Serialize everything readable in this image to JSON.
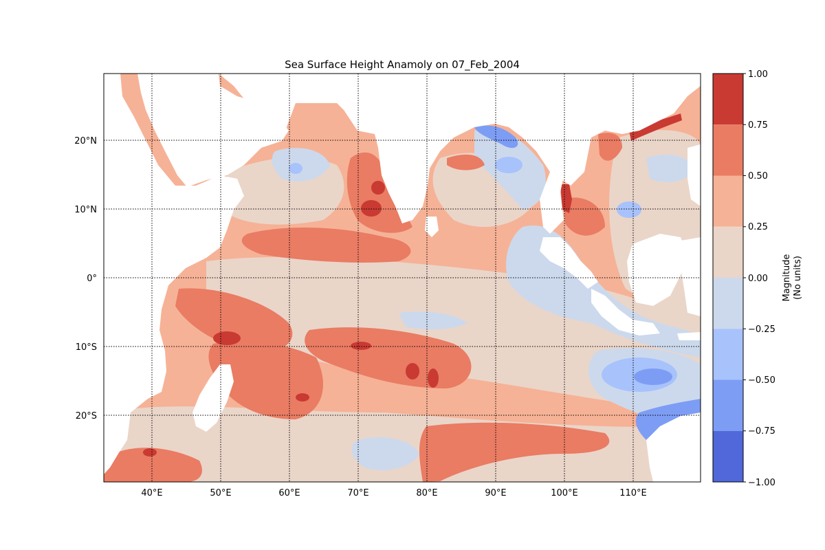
{
  "title": "Sea Surface Height Anamoly on 07_Feb_2004",
  "map": {
    "lon_range": [
      33,
      120
    ],
    "lat_range": [
      -30,
      30
    ],
    "grid": true,
    "grid_style": "dotted",
    "lon_ticks": [
      {
        "value": 40,
        "label": "40°E"
      },
      {
        "value": 50,
        "label": "50°E"
      },
      {
        "value": 60,
        "label": "60°E"
      },
      {
        "value": 70,
        "label": "70°E"
      },
      {
        "value": 80,
        "label": "80°E"
      },
      {
        "value": 90,
        "label": "90°E"
      },
      {
        "value": 100,
        "label": "100°E"
      },
      {
        "value": 110,
        "label": "110°E"
      }
    ],
    "lat_ticks": [
      {
        "value": 20,
        "label": "20°N"
      },
      {
        "value": 10,
        "label": "10°N"
      },
      {
        "value": 0,
        "label": "0°"
      },
      {
        "value": -10,
        "label": "10°S"
      },
      {
        "value": -20,
        "label": "20°S"
      }
    ],
    "land_color": "#ffffff"
  },
  "colorbar": {
    "label_line1": "Magnitude",
    "label_line2": "(No units)",
    "range": [
      -1.0,
      1.0
    ],
    "ticks": [
      {
        "value": 1.0,
        "label": "1.00"
      },
      {
        "value": 0.75,
        "label": "0.75"
      },
      {
        "value": 0.5,
        "label": "0.50"
      },
      {
        "value": 0.25,
        "label": "0.25"
      },
      {
        "value": 0.0,
        "label": "0.00"
      },
      {
        "value": -0.25,
        "label": "−0.25"
      },
      {
        "value": -0.5,
        "label": "−0.50"
      },
      {
        "value": -0.75,
        "label": "−0.75"
      },
      {
        "value": -1.0,
        "label": "−1.00"
      }
    ],
    "levels": [
      {
        "min": 0.75,
        "max": 1.0,
        "color": "#c93a33"
      },
      {
        "min": 0.5,
        "max": 0.75,
        "color": "#e97c63"
      },
      {
        "min": 0.25,
        "max": 0.5,
        "color": "#f6b296"
      },
      {
        "min": 0.0,
        "max": 0.25,
        "color": "#ead5c9"
      },
      {
        "min": -0.25,
        "max": 0.0,
        "color": "#ccd9ec"
      },
      {
        "min": -0.5,
        "max": -0.25,
        "color": "#a8c2fc"
      },
      {
        "min": -0.75,
        "max": -0.5,
        "color": "#7d9df5"
      },
      {
        "min": -1.0,
        "max": -0.75,
        "color": "#5068da"
      }
    ]
  },
  "chart_data": {
    "type": "heatmap",
    "variable": "sea surface height anomaly",
    "date": "07_Feb_2004",
    "features": [
      {
        "level": 0.875,
        "lon": 72.5,
        "lat": 13.0
      },
      {
        "level": 0.875,
        "lon": 71.5,
        "lat": 10.0
      },
      {
        "level": 0.875,
        "lon": 51.0,
        "lat": -9.0
      },
      {
        "level": 0.875,
        "lon": 70.0,
        "lat": -10.0
      },
      {
        "level": 0.875,
        "lon": 78.0,
        "lat": -13.5
      },
      {
        "level": 0.875,
        "lon": 81.0,
        "lat": -15.0
      },
      {
        "level": 0.875,
        "lon": 62.0,
        "lat": -17.5
      },
      {
        "level": 0.875,
        "lon": 39.5,
        "lat": -25.5
      },
      {
        "level": 0.875,
        "lon": 101.0,
        "lat": 11.0
      },
      {
        "level": 0.875,
        "lon": 107.0,
        "lat": 20.0
      },
      {
        "level": 0.625,
        "lon": 58.0,
        "lat": 5.5
      },
      {
        "level": 0.625,
        "lon": 53.0,
        "lat": -6.0
      },
      {
        "level": 0.625,
        "lon": 56.0,
        "lat": -15.0
      },
      {
        "level": 0.625,
        "lon": 75.0,
        "lat": -11.0
      },
      {
        "level": 0.625,
        "lon": 87.0,
        "lat": -24.5
      },
      {
        "level": 0.625,
        "lon": 72.0,
        "lat": 9.5
      },
      {
        "level": 0.625,
        "lon": 88.0,
        "lat": 17.0
      },
      {
        "level": 0.625,
        "lon": 103.0,
        "lat": 8.0
      },
      {
        "level": 0.625,
        "lon": 43.0,
        "lat": -26.5
      },
      {
        "level": -0.125,
        "lon": 92.0,
        "lat": 3.0
      },
      {
        "level": -0.125,
        "lon": 113.0,
        "lat": -16.0
      },
      {
        "level": -0.125,
        "lon": 110.0,
        "lat": 12.0
      },
      {
        "level": -0.125,
        "lon": 66.0,
        "lat": 16.0
      },
      {
        "level": -0.125,
        "lon": 70.0,
        "lat": -26.0
      },
      {
        "level": -0.375,
        "lon": 113.5,
        "lat": -14.0
      },
      {
        "level": -0.375,
        "lon": 92.0,
        "lat": 14.0
      },
      {
        "level": -0.625,
        "lon": 90.5,
        "lat": 20.5
      },
      {
        "level": -0.625,
        "lon": 114.0,
        "lat": -21.5
      }
    ]
  }
}
